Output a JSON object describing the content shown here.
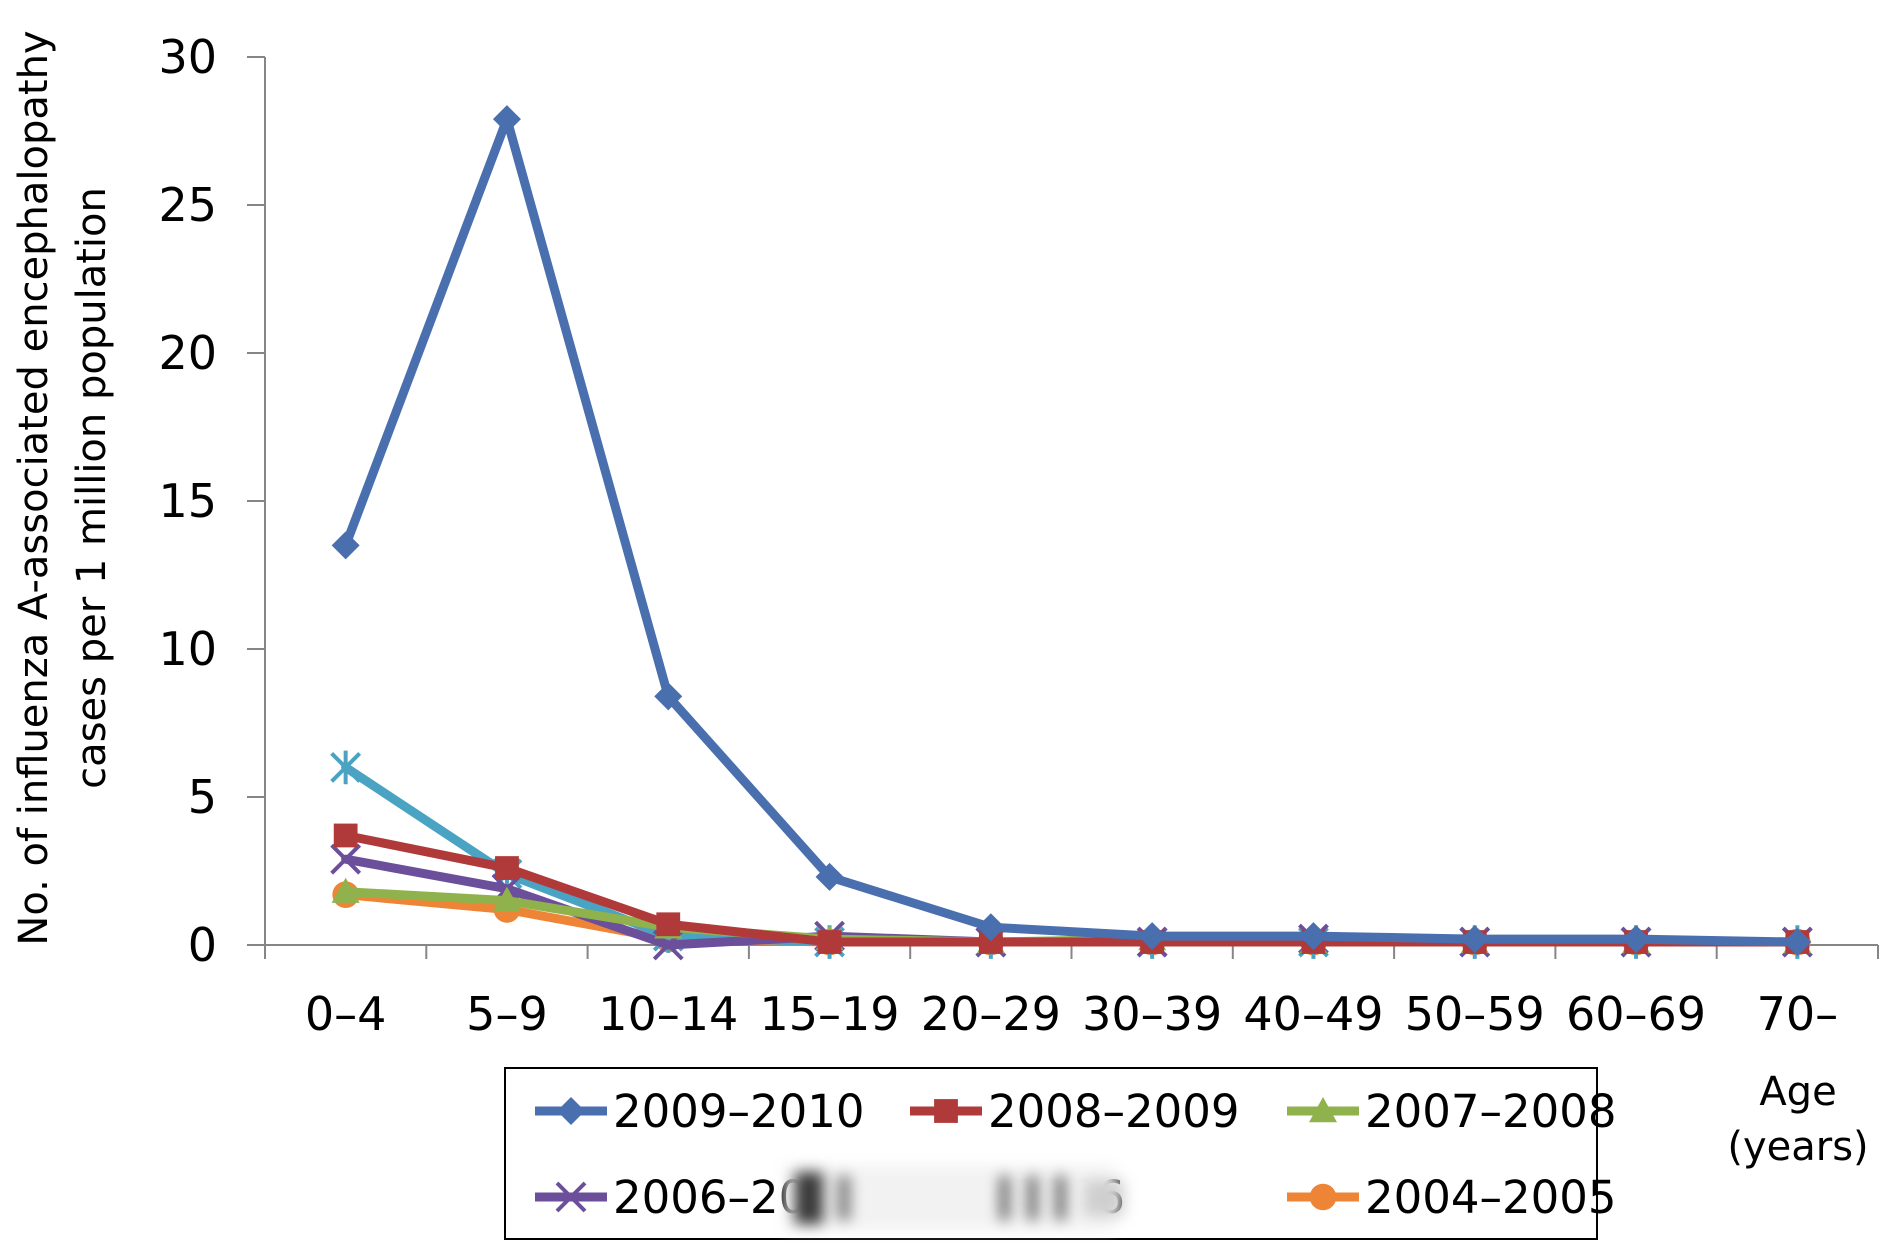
{
  "chart_data": {
    "type": "line",
    "title": "",
    "xlabel": "Age\n(years)",
    "xlabel_lines": [
      "Age",
      "(years)"
    ],
    "ylabel": "No. of influenza A-associated encephalopathy cases per 1 million population",
    "ylabel_lines": [
      "No. of influenza A-associated encephalopathy",
      "cases per 1 million population"
    ],
    "categories": [
      "0–4",
      "5–9",
      "10–14",
      "15–19",
      "20–29",
      "30–39",
      "40–49",
      "50–59",
      "60–69",
      "70–"
    ],
    "ylim": [
      0,
      30
    ],
    "yticks": [
      "0",
      "5",
      "10",
      "15",
      "20",
      "25",
      "30"
    ],
    "grid": false,
    "legend_position": "bottom",
    "series": [
      {
        "name": "2009–2010",
        "color": "#4a6faf",
        "marker": "diamond",
        "values": [
          13.5,
          27.9,
          8.4,
          2.3,
          0.6,
          0.3,
          0.3,
          0.2,
          0.2,
          0.1
        ]
      },
      {
        "name": "2008–2009",
        "color": "#b03a3a",
        "marker": "square",
        "values": [
          3.7,
          2.6,
          0.7,
          0.1,
          0.1,
          0.1,
          0.1,
          0.1,
          0.1,
          0.1
        ]
      },
      {
        "name": "2007–2008",
        "color": "#8fb24c",
        "marker": "triangle",
        "values": [
          1.8,
          1.5,
          0.6,
          0.2,
          0.1,
          0.2,
          0.1,
          0.1,
          0.1,
          0.1
        ]
      },
      {
        "name": "2006–2007",
        "color": "#6b4f9a",
        "marker": "x",
        "values": [
          2.9,
          1.9,
          0.0,
          0.3,
          0.1,
          0.1,
          0.2,
          0.1,
          0.1,
          0.1
        ]
      },
      {
        "name": "2005–2006",
        "color": "#4aa3c3",
        "marker": "star",
        "values": [
          6.0,
          2.4,
          0.3,
          0.1,
          0.1,
          0.1,
          0.1,
          0.1,
          0.1,
          0.1
        ]
      },
      {
        "name": "2004–2005",
        "color": "#ee8436",
        "marker": "circle",
        "values": [
          1.7,
          1.2,
          0.2,
          0.1,
          0.1,
          0.1,
          0.1,
          0.1,
          0.1,
          0.1
        ]
      }
    ],
    "legend_entries": [
      {
        "series_index": 0,
        "label": "2009–2010",
        "blurred": false
      },
      {
        "series_index": 1,
        "label": "2008–2009",
        "blurred": false
      },
      {
        "series_index": 2,
        "label": "2007–2008",
        "blurred": false
      },
      {
        "series_index": 3,
        "label": "2006–20",
        "blurred": true
      },
      {
        "series_index": 4,
        "label": "–2006",
        "blurred": true
      },
      {
        "series_index": 5,
        "label": "2004–2005",
        "blurred": false
      }
    ]
  }
}
